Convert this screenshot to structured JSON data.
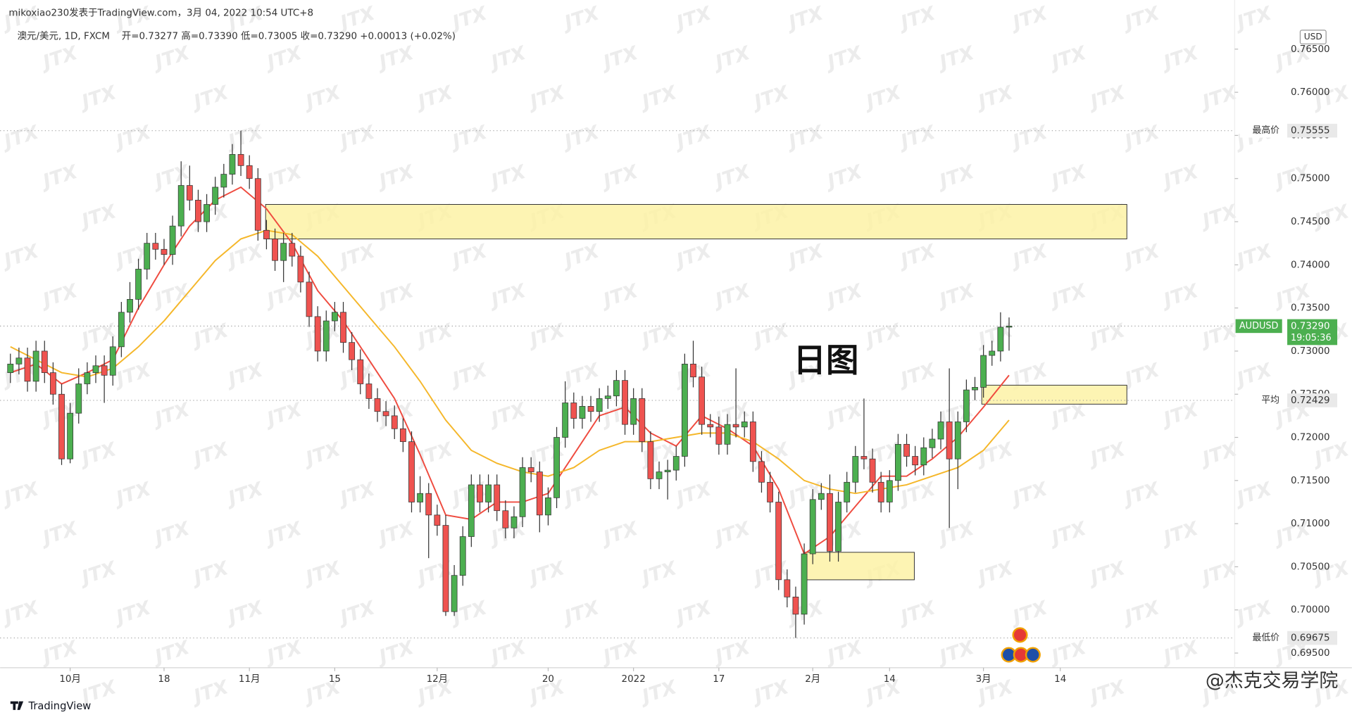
{
  "header": {
    "publisher": "mikoxiao230发表于TradingView.com，3月 04, 2022 10:54 UTC+8",
    "symbol": "澳元/美元, 1D, FXCM",
    "ohlc_text": "开=0.73277 高=0.73390 低=0.73005 收=0.73290 +0.00013 (+0.02%)"
  },
  "chart_data": {
    "type": "candlestick",
    "annotation": "日图",
    "currency": "USD",
    "open": [
      0.7275,
      0.7285,
      0.7292,
      0.7265,
      0.73,
      0.7275,
      0.725,
      0.7175,
      0.7228,
      0.7262,
      0.7275,
      0.7283,
      0.7272,
      0.7305,
      0.7345,
      0.736,
      0.7395,
      0.7425,
      0.7418,
      0.7412,
      0.7445,
      0.7492,
      0.7475,
      0.745,
      0.747,
      0.749,
      0.7505,
      0.7528,
      0.7515,
      0.75,
      0.744,
      0.743,
      0.7405,
      0.7425,
      0.741,
      0.738,
      0.734,
      0.73,
      0.7335,
      0.7345,
      0.731,
      0.729,
      0.7262,
      0.7245,
      0.723,
      0.7225,
      0.721,
      0.7195,
      0.7125,
      0.7135,
      0.711,
      0.7098,
      0.6998,
      0.704,
      0.7085,
      0.7145,
      0.7125,
      0.7145,
      0.7115,
      0.7095,
      0.7108,
      0.7165,
      0.716,
      0.711,
      0.713,
      0.72,
      0.724,
      0.7222,
      0.7236,
      0.723,
      0.7245,
      0.7248,
      0.7266,
      0.7215,
      0.7245,
      0.7195,
      0.7152,
      0.716,
      0.7162,
      0.7178,
      0.7285,
      0.727,
      0.7215,
      0.7212,
      0.7192,
      0.7215,
      0.7212,
      0.7218,
      0.7172,
      0.7148,
      0.7125,
      0.7035,
      0.7015,
      0.6995,
      0.7065,
      0.7128,
      0.7135,
      0.7068,
      0.7125,
      0.7148,
      0.7178,
      0.7175,
      0.7148,
      0.7125,
      0.715,
      0.7192,
      0.7178,
      0.7168,
      0.7188,
      0.7198,
      0.7218,
      0.7175,
      0.7218,
      0.7255,
      0.7258,
      0.7295,
      0.73,
      0.73277
    ],
    "high": [
      0.7297,
      0.7304,
      0.7304,
      0.7312,
      0.7312,
      0.7287,
      0.7262,
      0.724,
      0.728,
      0.7287,
      0.7295,
      0.7295,
      0.7317,
      0.7357,
      0.738,
      0.7407,
      0.7437,
      0.7437,
      0.743,
      0.7457,
      0.752,
      0.7515,
      0.7487,
      0.7482,
      0.7502,
      0.7517,
      0.754,
      0.75555,
      0.7527,
      0.7512,
      0.7452,
      0.7442,
      0.7437,
      0.7437,
      0.7422,
      0.7392,
      0.7352,
      0.7347,
      0.7357,
      0.7357,
      0.7322,
      0.7302,
      0.7274,
      0.7257,
      0.7242,
      0.7237,
      0.7222,
      0.7207,
      0.7155,
      0.7147,
      0.7122,
      0.711,
      0.7052,
      0.7097,
      0.7157,
      0.7157,
      0.7157,
      0.7157,
      0.7127,
      0.712,
      0.7177,
      0.7177,
      0.7172,
      0.7142,
      0.7212,
      0.7265,
      0.7252,
      0.7248,
      0.7248,
      0.7257,
      0.726,
      0.7278,
      0.7278,
      0.7257,
      0.7257,
      0.7207,
      0.7172,
      0.7174,
      0.719,
      0.7297,
      0.7312,
      0.7282,
      0.7227,
      0.7224,
      0.7227,
      0.728,
      0.723,
      0.723,
      0.7184,
      0.716,
      0.7137,
      0.7047,
      0.7027,
      0.7077,
      0.714,
      0.7147,
      0.7157,
      0.7137,
      0.716,
      0.719,
      0.7245,
      0.7187,
      0.716,
      0.7162,
      0.7204,
      0.7204,
      0.719,
      0.72,
      0.721,
      0.723,
      0.728,
      0.723,
      0.7267,
      0.727,
      0.7307,
      0.7312,
      0.7345,
      0.7339
    ],
    "low": [
      0.7263,
      0.7273,
      0.7253,
      0.7253,
      0.7263,
      0.7238,
      0.7168,
      0.717,
      0.7216,
      0.725,
      0.7263,
      0.724,
      0.726,
      0.7293,
      0.7333,
      0.7348,
      0.7383,
      0.7406,
      0.74,
      0.74,
      0.7433,
      0.7463,
      0.7438,
      0.7438,
      0.7458,
      0.7478,
      0.7493,
      0.7503,
      0.7488,
      0.7428,
      0.7418,
      0.7393,
      0.738,
      0.7398,
      0.7368,
      0.7328,
      0.7288,
      0.7288,
      0.7323,
      0.7298,
      0.7278,
      0.725,
      0.7233,
      0.7218,
      0.7213,
      0.7198,
      0.7183,
      0.7113,
      0.7113,
      0.706,
      0.7086,
      0.6993,
      0.6993,
      0.7028,
      0.7073,
      0.7113,
      0.7113,
      0.7103,
      0.7083,
      0.7083,
      0.7096,
      0.7148,
      0.709,
      0.7098,
      0.7118,
      0.7188,
      0.721,
      0.721,
      0.7218,
      0.7218,
      0.7233,
      0.7236,
      0.7203,
      0.7203,
      0.7183,
      0.714,
      0.714,
      0.7128,
      0.715,
      0.7166,
      0.7258,
      0.7203,
      0.72,
      0.718,
      0.718,
      0.72,
      0.72,
      0.716,
      0.7136,
      0.7113,
      0.7023,
      0.7003,
      0.69675,
      0.6983,
      0.7053,
      0.7116,
      0.7056,
      0.7056,
      0.7113,
      0.7136,
      0.7163,
      0.7136,
      0.7113,
      0.7113,
      0.7138,
      0.7166,
      0.7156,
      0.7156,
      0.7176,
      0.7186,
      0.7095,
      0.714,
      0.7206,
      0.7243,
      0.7246,
      0.7283,
      0.7288,
      0.73005
    ],
    "close": [
      0.7285,
      0.7292,
      0.7265,
      0.73,
      0.7275,
      0.725,
      0.7175,
      0.7228,
      0.7262,
      0.7275,
      0.7283,
      0.7272,
      0.7305,
      0.7345,
      0.736,
      0.7395,
      0.7425,
      0.7418,
      0.7412,
      0.7445,
      0.7492,
      0.7475,
      0.745,
      0.747,
      0.749,
      0.7505,
      0.7528,
      0.7515,
      0.75,
      0.744,
      0.743,
      0.7405,
      0.7425,
      0.741,
      0.738,
      0.734,
      0.73,
      0.7335,
      0.7345,
      0.731,
      0.729,
      0.7262,
      0.7245,
      0.723,
      0.7225,
      0.721,
      0.7195,
      0.7125,
      0.7135,
      0.711,
      0.7098,
      0.6998,
      0.704,
      0.7085,
      0.7145,
      0.7125,
      0.7145,
      0.7115,
      0.7095,
      0.7108,
      0.7165,
      0.716,
      0.711,
      0.713,
      0.72,
      0.724,
      0.7222,
      0.7236,
      0.723,
      0.7245,
      0.7248,
      0.7266,
      0.7215,
      0.7245,
      0.7195,
      0.7152,
      0.716,
      0.7162,
      0.7178,
      0.7285,
      0.727,
      0.7215,
      0.7212,
      0.7192,
      0.7215,
      0.7212,
      0.7218,
      0.7172,
      0.7148,
      0.7125,
      0.7035,
      0.7015,
      0.6995,
      0.7065,
      0.7128,
      0.7135,
      0.7068,
      0.7125,
      0.7148,
      0.7178,
      0.7175,
      0.7148,
      0.7125,
      0.715,
      0.7192,
      0.7178,
      0.7168,
      0.7188,
      0.7198,
      0.7218,
      0.7175,
      0.7218,
      0.7255,
      0.7258,
      0.7295,
      0.73,
      0.73277,
      0.7329
    ],
    "up_color": "#4caf50",
    "down_color": "#ef5350",
    "lines": [
      {
        "color": "#ef4b3f",
        "x": [
          0,
          3,
          6,
          9,
          12,
          15,
          18,
          21,
          24,
          27,
          30,
          33,
          36,
          39,
          42,
          45,
          48,
          51,
          54,
          57,
          60,
          63,
          66,
          69,
          72,
          75,
          78,
          81,
          84,
          87,
          90,
          93,
          96,
          99,
          102,
          105,
          108,
          111,
          114,
          117
        ],
        "values": [
          0.7275,
          0.7285,
          0.7262,
          0.7275,
          0.729,
          0.735,
          0.74,
          0.7445,
          0.7475,
          0.749,
          0.7465,
          0.7425,
          0.737,
          0.7335,
          0.729,
          0.7245,
          0.718,
          0.711,
          0.7105,
          0.7125,
          0.7125,
          0.7135,
          0.718,
          0.7225,
          0.7235,
          0.7205,
          0.719,
          0.7225,
          0.721,
          0.719,
          0.714,
          0.7065,
          0.7085,
          0.712,
          0.7155,
          0.7155,
          0.7175,
          0.72,
          0.7235,
          0.7272
        ]
      },
      {
        "color": "#f5b72a",
        "x": [
          0,
          3,
          6,
          9,
          12,
          15,
          18,
          21,
          24,
          27,
          30,
          33,
          36,
          39,
          42,
          45,
          48,
          51,
          54,
          57,
          60,
          63,
          66,
          69,
          72,
          75,
          78,
          81,
          84,
          87,
          90,
          93,
          96,
          99,
          102,
          105,
          108,
          111,
          114,
          117
        ],
        "values": [
          0.7305,
          0.729,
          0.7275,
          0.727,
          0.728,
          0.7305,
          0.7335,
          0.737,
          0.7405,
          0.743,
          0.744,
          0.7435,
          0.741,
          0.7375,
          0.734,
          0.7305,
          0.7265,
          0.722,
          0.7185,
          0.717,
          0.716,
          0.7155,
          0.7165,
          0.7185,
          0.7195,
          0.7195,
          0.72,
          0.7205,
          0.7205,
          0.7195,
          0.7175,
          0.715,
          0.714,
          0.7135,
          0.714,
          0.7145,
          0.7155,
          0.7165,
          0.7185,
          0.722
        ]
      }
    ],
    "zones": [
      {
        "x": [
          29.9,
          130.8
        ],
        "y": [
          0.743,
          0.747
        ]
      },
      {
        "x": [
          113.8,
          130.8
        ],
        "y": [
          0.72385,
          0.72605
        ]
      },
      {
        "x": [
          92.9,
          105.9
        ],
        "y": [
          0.70349,
          0.70668
        ]
      }
    ],
    "price_lines": [
      {
        "name": "最高价",
        "value": 0.75555
      },
      {
        "name": "AUDUSD",
        "value": 0.7329,
        "value_label": "0.73290",
        "countdown": "19:05:36"
      },
      {
        "name": "平均",
        "value": 0.72429
      },
      {
        "name": "最低价",
        "value": 0.69675
      }
    ],
    "xlim": [
      -1.21,
      143.43
    ],
    "xticks": [
      {
        "value": 7,
        "label": "10月"
      },
      {
        "value": 18,
        "label": "18"
      },
      {
        "value": 28,
        "label": "11月"
      },
      {
        "value": 38,
        "label": "15"
      },
      {
        "value": 50,
        "label": "12月"
      },
      {
        "value": 63,
        "label": "20"
      },
      {
        "value": 73,
        "label": "2022"
      },
      {
        "value": 83,
        "label": "17"
      },
      {
        "value": 94,
        "label": "2月"
      },
      {
        "value": 103,
        "label": "14"
      },
      {
        "value": 114,
        "label": "3月"
      },
      {
        "value": 123,
        "label": "14"
      }
    ],
    "ylim": [
      0.6933,
      0.7677
    ],
    "yticks": [
      {
        "value": 0.695,
        "label": "0.69500"
      },
      {
        "value": 0.7,
        "label": "0.70000"
      },
      {
        "value": 0.705,
        "label": "0.70500"
      },
      {
        "value": 0.71,
        "label": "0.71000"
      },
      {
        "value": 0.715,
        "label": "0.71500"
      },
      {
        "value": 0.72,
        "label": "0.72000"
      },
      {
        "value": 0.725,
        "label": "0.72500"
      },
      {
        "value": 0.73,
        "label": "0.73000"
      },
      {
        "value": 0.735,
        "label": "0.73500"
      },
      {
        "value": 0.74,
        "label": "0.74000"
      },
      {
        "value": 0.745,
        "label": "0.74500"
      },
      {
        "value": 0.75,
        "label": "0.75000"
      },
      {
        "value": 0.755,
        "label": "0.75500"
      },
      {
        "value": 0.76,
        "label": "0.76000"
      },
      {
        "value": 0.765,
        "label": "0.76500"
      }
    ]
  },
  "watermark": "JTX",
  "footer": {
    "logo": "TradingView",
    "credit": "@杰克交易学院"
  }
}
